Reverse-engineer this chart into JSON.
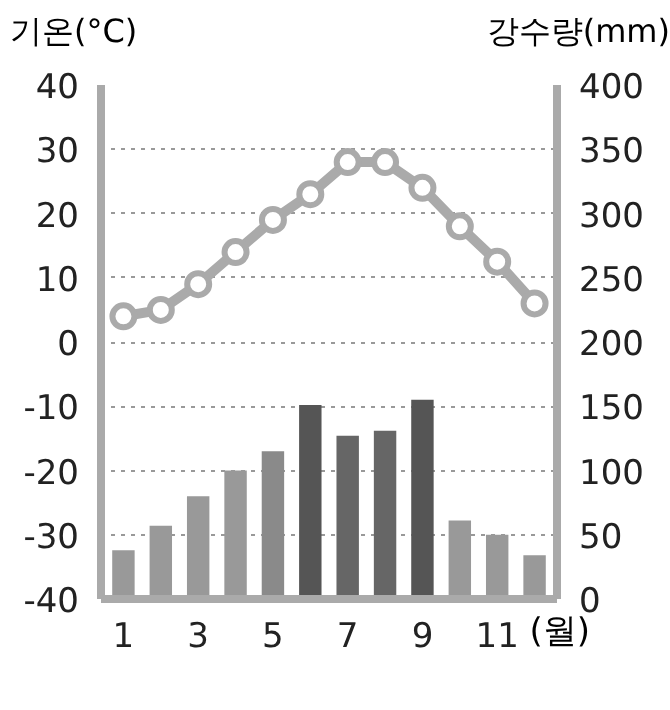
{
  "chart_data": {
    "type": "bar",
    "ylabel": "기온(°C)",
    "y2label": "강수량(mm)",
    "xlabel": "(월)",
    "categories": [
      "1",
      null,
      "3",
      null,
      "5",
      null,
      "7",
      null,
      "9",
      null,
      "11",
      null
    ],
    "series": [
      {
        "axis": "y2",
        "colors": [
          "#999999",
          "#999999",
          "#999999",
          "#999999",
          "#8a8a8a",
          "#555555",
          "#666666",
          "#666666",
          "#555555",
          "#999999",
          "#999999",
          "#999999"
        ],
        "values": [
          38,
          57,
          80,
          100,
          115,
          151,
          127,
          131,
          155,
          61,
          50,
          34
        ]
      },
      {
        "type": "line",
        "color": "#aaaaaa",
        "marker": "circle",
        "line_style": "solid",
        "values": [
          4,
          5,
          9,
          14,
          19,
          23,
          28,
          28,
          24,
          18,
          12.5,
          6
        ]
      }
    ],
    "ylim": [
      -40,
      40
    ],
    "yticks": [
      -40,
      -30,
      -20,
      -10,
      0,
      10,
      20,
      30,
      40
    ],
    "y2lim": [
      0,
      400
    ],
    "y2ticks": [
      0,
      50,
      100,
      150,
      200,
      250,
      300,
      350,
      400
    ],
    "grid": "y"
  }
}
